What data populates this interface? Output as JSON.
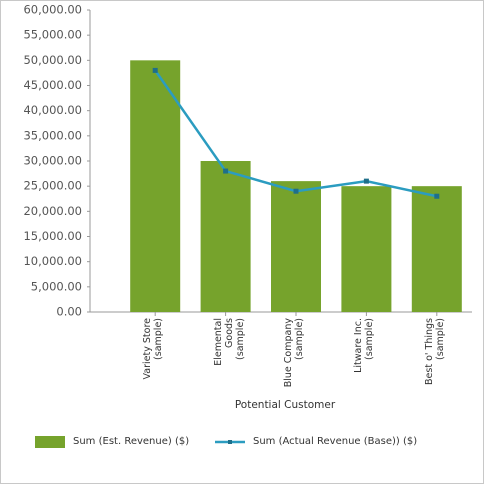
{
  "chart_data": {
    "type": "bar-line",
    "x_label": "Potential Customer",
    "categories": [
      "Variety Store (sample)",
      "Elemental Goods (sample)",
      "Blue Company (sample)",
      "Litware Inc. (sample)",
      "Best o' Things (sample)"
    ],
    "series": [
      {
        "name": "Sum (Est. Revenue) ($)",
        "type": "bar",
        "color": "#76a32c",
        "values": [
          50000,
          30000,
          26000,
          25000,
          25000
        ]
      },
      {
        "name": "Sum (Actual Revenue (Base)) ($)",
        "type": "line",
        "color": "#2b9cc0",
        "values": [
          48000,
          28000,
          24000,
          26000,
          23000
        ]
      }
    ],
    "ylim": [
      0,
      60000
    ],
    "yticks": [
      {
        "value": 0,
        "label": "0.00"
      },
      {
        "value": 5000,
        "label": "5,000.00"
      },
      {
        "value": 10000,
        "label": "10,000.00"
      },
      {
        "value": 15000,
        "label": "15,000.00"
      },
      {
        "value": 20000,
        "label": "20,000.00"
      },
      {
        "value": 25000,
        "label": "25,000.00"
      },
      {
        "value": 30000,
        "label": "30,000.00"
      },
      {
        "value": 35000,
        "label": "35,000.00"
      },
      {
        "value": 40000,
        "label": "40,000.00"
      },
      {
        "value": 45000,
        "label": "45,000.00"
      },
      {
        "value": 50000,
        "label": "50,000.00"
      },
      {
        "value": 55000,
        "label": "55,000.00"
      },
      {
        "value": 60000,
        "label": "60,000.00"
      }
    ],
    "grid": false
  }
}
